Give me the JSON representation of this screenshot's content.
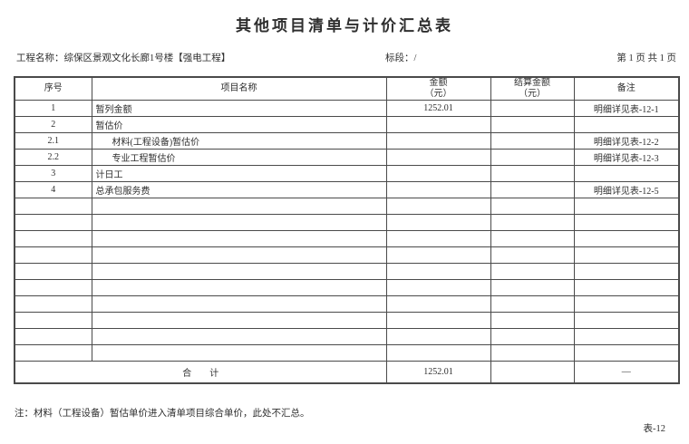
{
  "colors": {
    "border": "#4a4a4a",
    "text": "#2e2e2e",
    "bg": "#ffffff"
  },
  "title": "其他项目清单与计价汇总表",
  "meta": {
    "project_label": "工程名称：",
    "project_value": "综保区景观文化长廊1号楼【强电工程】",
    "section_label": "标段：",
    "section_value": "/",
    "page_info": "第  1 页 共 1 页"
  },
  "table": {
    "columns": [
      {
        "key": "no",
        "label": "序号"
      },
      {
        "key": "name",
        "label": "项目名称"
      },
      {
        "key": "amount",
        "label": "金额",
        "sublabel": "（元）"
      },
      {
        "key": "settle",
        "label": "结算金额",
        "sublabel": "（元）"
      },
      {
        "key": "note",
        "label": "备注"
      }
    ],
    "rows": [
      {
        "no": "1",
        "name": "暂列金额",
        "indent": false,
        "amount": "1252.01",
        "settle": "",
        "note": "明细详见表-12-1"
      },
      {
        "no": "2",
        "name": "暂估价",
        "indent": false,
        "amount": "",
        "settle": "",
        "note": ""
      },
      {
        "no": "2.1",
        "name": "材料(工程设备)暂估价",
        "indent": true,
        "amount": "",
        "settle": "",
        "note": "明细详见表-12-2"
      },
      {
        "no": "2.2",
        "name": "专业工程暂估价",
        "indent": true,
        "amount": "",
        "settle": "",
        "note": "明细详见表-12-3"
      },
      {
        "no": "3",
        "name": "计日工",
        "indent": false,
        "amount": "",
        "settle": "",
        "note": ""
      },
      {
        "no": "4",
        "name": "总承包服务费",
        "indent": false,
        "amount": "",
        "settle": "",
        "note": "明细详见表-12-5"
      },
      {
        "no": "",
        "name": "",
        "indent": false,
        "amount": "",
        "settle": "",
        "note": ""
      },
      {
        "no": "",
        "name": "",
        "indent": false,
        "amount": "",
        "settle": "",
        "note": ""
      },
      {
        "no": "",
        "name": "",
        "indent": false,
        "amount": "",
        "settle": "",
        "note": ""
      },
      {
        "no": "",
        "name": "",
        "indent": false,
        "amount": "",
        "settle": "",
        "note": ""
      },
      {
        "no": "",
        "name": "",
        "indent": false,
        "amount": "",
        "settle": "",
        "note": ""
      },
      {
        "no": "",
        "name": "",
        "indent": false,
        "amount": "",
        "settle": "",
        "note": ""
      },
      {
        "no": "",
        "name": "",
        "indent": false,
        "amount": "",
        "settle": "",
        "note": ""
      },
      {
        "no": "",
        "name": "",
        "indent": false,
        "amount": "",
        "settle": "",
        "note": ""
      },
      {
        "no": "",
        "name": "",
        "indent": false,
        "amount": "",
        "settle": "",
        "note": ""
      },
      {
        "no": "",
        "name": "",
        "indent": false,
        "amount": "",
        "settle": "",
        "note": ""
      }
    ],
    "total_row": {
      "label": "合　　计",
      "amount": "1252.01",
      "settle": "",
      "note": "—"
    }
  },
  "footer": {
    "note": "注：材料（工程设备）暂估单价进入清单项目综合单价，此处不汇总。",
    "table_no": "表-12"
  }
}
